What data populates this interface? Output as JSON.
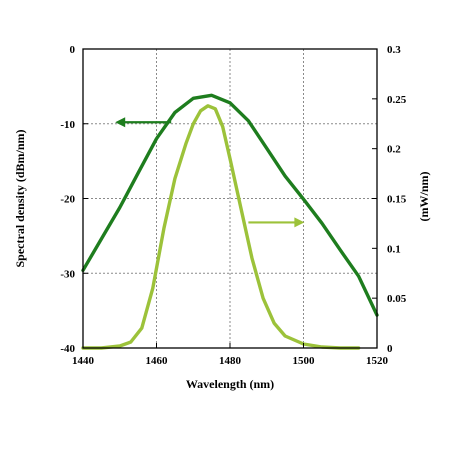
{
  "chart_data": {
    "type": "line",
    "title": "",
    "xlabel": "Wavelength (nm)",
    "ylabel_left": "Spectral density (dBm/nm)",
    "ylabel_right": "(mW/nm)",
    "xlim": [
      1440,
      1520
    ],
    "ylim_left": [
      -40,
      0
    ],
    "ylim_right": [
      0,
      0.3
    ],
    "grid": true,
    "grid_style": "dotted",
    "x_ticks": [
      1440,
      1460,
      1480,
      1500,
      1520
    ],
    "y_left_ticks": [
      0,
      -10,
      -20,
      -30,
      -40
    ],
    "y_right_ticks": [
      "0",
      "0.05",
      "0.1",
      "0.15",
      "0.2",
      "0.25",
      "0.3"
    ],
    "series": [
      {
        "axis": "left",
        "color": "#1e7d1e",
        "points": [
          [
            1440,
            -29.6
          ],
          [
            1445,
            -25.4
          ],
          [
            1450,
            -21.2
          ],
          [
            1455,
            -16.6
          ],
          [
            1460,
            -12.0
          ],
          [
            1465,
            -8.5
          ],
          [
            1470,
            -6.6
          ],
          [
            1475,
            -6.2
          ],
          [
            1480,
            -7.2
          ],
          [
            1485,
            -9.6
          ],
          [
            1490,
            -13.3
          ],
          [
            1495,
            -17.0
          ],
          [
            1500,
            -20.1
          ],
          [
            1505,
            -23.3
          ],
          [
            1510,
            -26.9
          ],
          [
            1515,
            -30.4
          ],
          [
            1520,
            -35.6
          ]
        ]
      },
      {
        "axis": "right",
        "color": "#9cc23a",
        "points": [
          [
            1440,
            0
          ],
          [
            1445,
            0.0
          ],
          [
            1450,
            0.002
          ],
          [
            1453,
            0.006
          ],
          [
            1456,
            0.02
          ],
          [
            1459,
            0.06
          ],
          [
            1462,
            0.12
          ],
          [
            1465,
            0.17
          ],
          [
            1468,
            0.205
          ],
          [
            1470,
            0.225
          ],
          [
            1472,
            0.238
          ],
          [
            1474,
            0.243
          ],
          [
            1476,
            0.24
          ],
          [
            1478,
            0.222
          ],
          [
            1480,
            0.19
          ],
          [
            1483,
            0.14
          ],
          [
            1486,
            0.09
          ],
          [
            1489,
            0.05
          ],
          [
            1492,
            0.025
          ],
          [
            1495,
            0.012
          ],
          [
            1500,
            0.004
          ],
          [
            1505,
            0.001
          ],
          [
            1510,
            0.0
          ],
          [
            1515,
            0.0
          ]
        ]
      }
    ],
    "annotations": [
      {
        "type": "arrow",
        "direction": "left",
        "points_to": "left-axis",
        "color": "#1e7d1e",
        "at": [
          1464,
          -9.8
        ]
      },
      {
        "type": "arrow",
        "direction": "right",
        "points_to": "right-axis",
        "color": "#9cc23a",
        "at": [
          1485,
          -23.2
        ]
      }
    ]
  }
}
